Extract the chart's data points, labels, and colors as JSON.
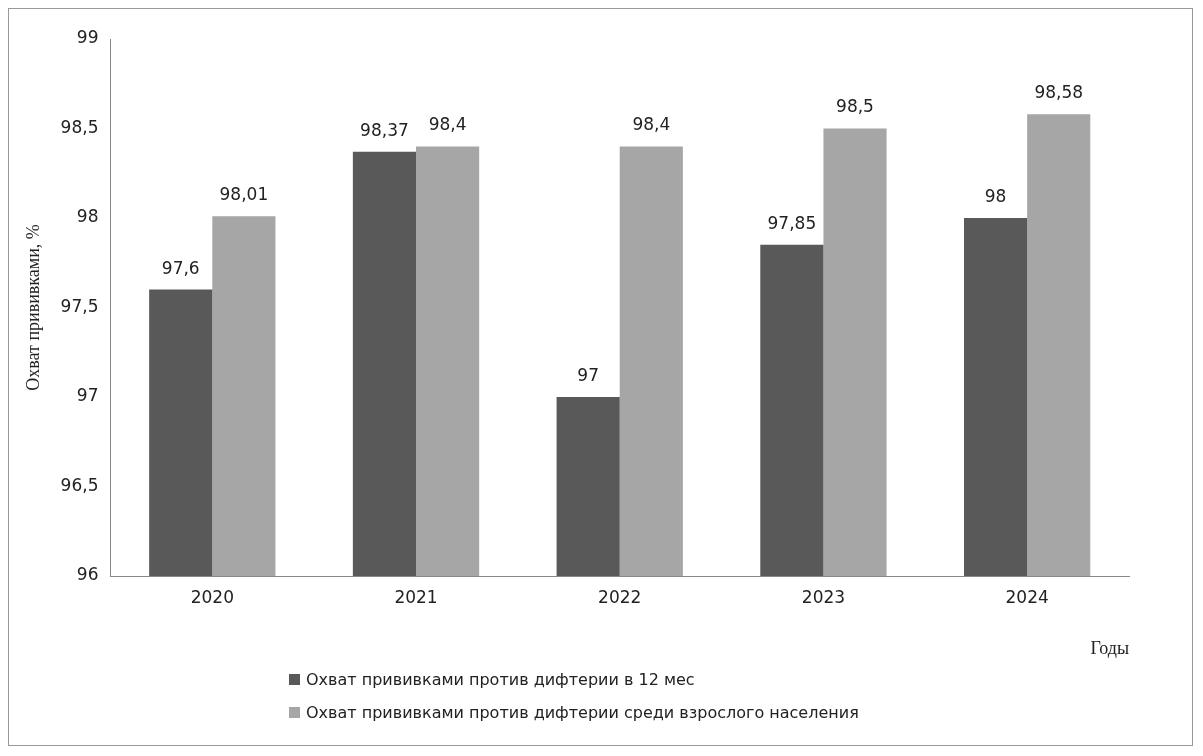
{
  "chart_data": {
    "type": "bar",
    "categories": [
      "2020",
      "2021",
      "2022",
      "2023",
      "2024"
    ],
    "xlabel": "Годы",
    "ylabel": "Охват прививками, %",
    "series": [
      {
        "name": "Охват прививками против дифтерии в 12 мес",
        "color": "#595959",
        "values": [
          97.6,
          98.37,
          97,
          97.85,
          98
        ],
        "value_labels": [
          "97,6",
          "98,37",
          "97",
          "97,85",
          "98"
        ]
      },
      {
        "name": "Охват прививками против дифтерии среди взрослого населения",
        "color": "#a6a6a6",
        "values": [
          98.01,
          98.4,
          98.4,
          98.5,
          98.58
        ],
        "value_labels": [
          "98,01",
          "98,4",
          "98,4",
          "98,5",
          "98,58"
        ]
      }
    ],
    "ylim": [
      96,
      99
    ],
    "yticks": [
      96,
      {
        "value": 96.5,
        "label": "96,5"
      },
      97,
      {
        "value": 97.5,
        "label": "97,5"
      },
      98,
      {
        "value": 98.5,
        "label": "98,5"
      },
      99
    ],
    "grid": false,
    "legend": "bottom"
  }
}
